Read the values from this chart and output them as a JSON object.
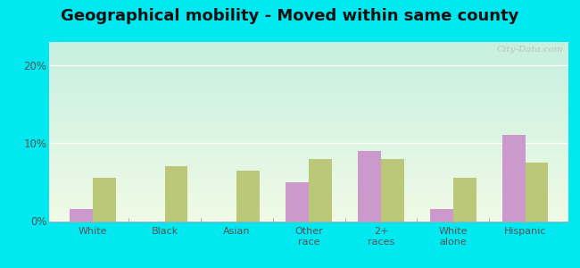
{
  "title": "Geographical mobility - Moved within same county",
  "categories": [
    "White",
    "Black",
    "Asian",
    "Other\nrace",
    "2+\nraces",
    "White\nalone",
    "Hispanic"
  ],
  "palmer_values": [
    1.5,
    0.0,
    0.0,
    5.0,
    9.0,
    1.5,
    11.0
  ],
  "mass_values": [
    5.5,
    7.0,
    6.5,
    8.0,
    8.0,
    5.5,
    7.5
  ],
  "palmer_color": "#cc99cc",
  "mass_color": "#bbc878",
  "outer_bg": "#00e8f0",
  "plot_bg_tl": "#b0e8d8",
  "plot_bg_br": "#f0f5e0",
  "title_fontsize": 13,
  "yticks": [
    0,
    10,
    20
  ],
  "ylim": [
    0,
    23
  ],
  "bar_width": 0.32,
  "watermark": "City-Data.com"
}
